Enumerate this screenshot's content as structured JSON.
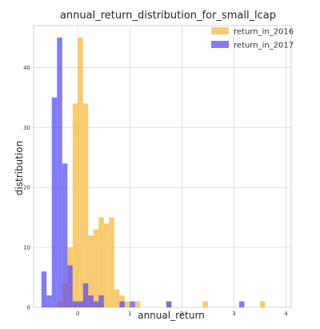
{
  "chart_data": {
    "type": "bar",
    "title": "annual_return_distribution_for_small_lcap",
    "xlabel": "annual_return",
    "ylabel": "distribution",
    "xlim": [
      -0.85,
      4.1
    ],
    "ylim": [
      0,
      47
    ],
    "x_ticks": [
      0,
      1,
      2,
      3,
      4
    ],
    "y_ticks": [
      0,
      10,
      20,
      30,
      40
    ],
    "grid": true,
    "legend_position": "top-right",
    "bin_width": 0.1,
    "series": [
      {
        "name": "return_in_2016",
        "color": "#f5b942",
        "bins": [
          {
            "x": -0.35,
            "count": 1
          },
          {
            "x": -0.25,
            "count": 4
          },
          {
            "x": -0.15,
            "count": 10
          },
          {
            "x": -0.05,
            "count": 34
          },
          {
            "x": 0.05,
            "count": 45
          },
          {
            "x": 0.15,
            "count": 34
          },
          {
            "x": 0.25,
            "count": 12
          },
          {
            "x": 0.35,
            "count": 13
          },
          {
            "x": 0.45,
            "count": 15
          },
          {
            "x": 0.55,
            "count": 14
          },
          {
            "x": 0.65,
            "count": 15
          },
          {
            "x": 0.75,
            "count": 3
          },
          {
            "x": 0.85,
            "count": 2
          },
          {
            "x": 0.95,
            "count": 1
          },
          {
            "x": 1.15,
            "count": 1
          },
          {
            "x": 1.75,
            "count": 1
          },
          {
            "x": 2.45,
            "count": 1
          },
          {
            "x": 3.55,
            "count": 1
          }
        ]
      },
      {
        "name": "return_in_2017",
        "color": "#5b4ff2",
        "bins": [
          {
            "x": -0.65,
            "count": 6
          },
          {
            "x": -0.55,
            "count": 2
          },
          {
            "x": -0.45,
            "count": 35
          },
          {
            "x": -0.35,
            "count": 45
          },
          {
            "x": -0.25,
            "count": 24
          },
          {
            "x": -0.15,
            "count": 7
          },
          {
            "x": -0.05,
            "count": 1
          },
          {
            "x": 0.05,
            "count": 1
          },
          {
            "x": 0.15,
            "count": 4
          },
          {
            "x": 0.25,
            "count": 2
          },
          {
            "x": 0.35,
            "count": 1
          },
          {
            "x": 0.45,
            "count": 2
          },
          {
            "x": 0.85,
            "count": 1
          },
          {
            "x": 1.05,
            "count": 1
          },
          {
            "x": 1.75,
            "count": 1
          },
          {
            "x": 3.15,
            "count": 1
          }
        ]
      }
    ]
  }
}
